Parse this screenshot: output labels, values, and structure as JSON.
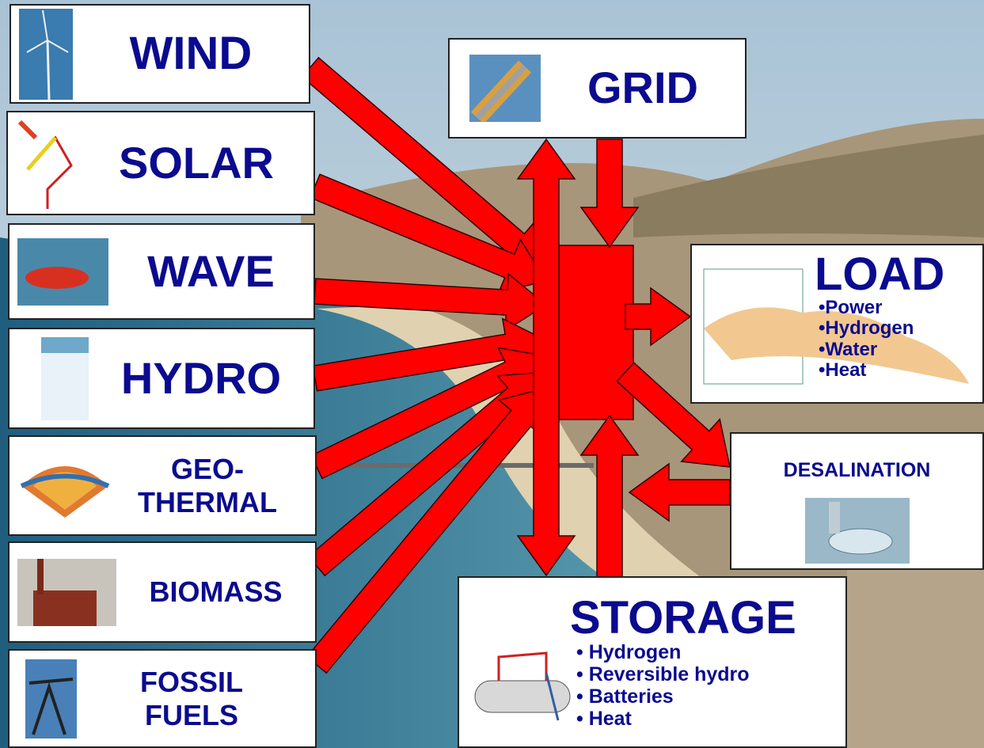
{
  "sources": [
    {
      "label": "WIND"
    },
    {
      "label": "SOLAR"
    },
    {
      "label": "WAVE"
    },
    {
      "label": "HYDRO"
    },
    {
      "label": "GEO-THERMAL"
    },
    {
      "label": "BIOMASS"
    },
    {
      "label": "FOSSIL FUELS"
    }
  ],
  "grid": {
    "label": "GRID"
  },
  "load": {
    "label": "LOAD",
    "items": [
      "•Power",
      "•Hydrogen",
      "•Water",
      "•Heat"
    ]
  },
  "desalination": {
    "label": "DESALINATION"
  },
  "storage": {
    "label": "STORAGE",
    "items": [
      "• Hydrogen",
      "• Reversible hydro",
      "• Batteries",
      "• Heat"
    ]
  }
}
